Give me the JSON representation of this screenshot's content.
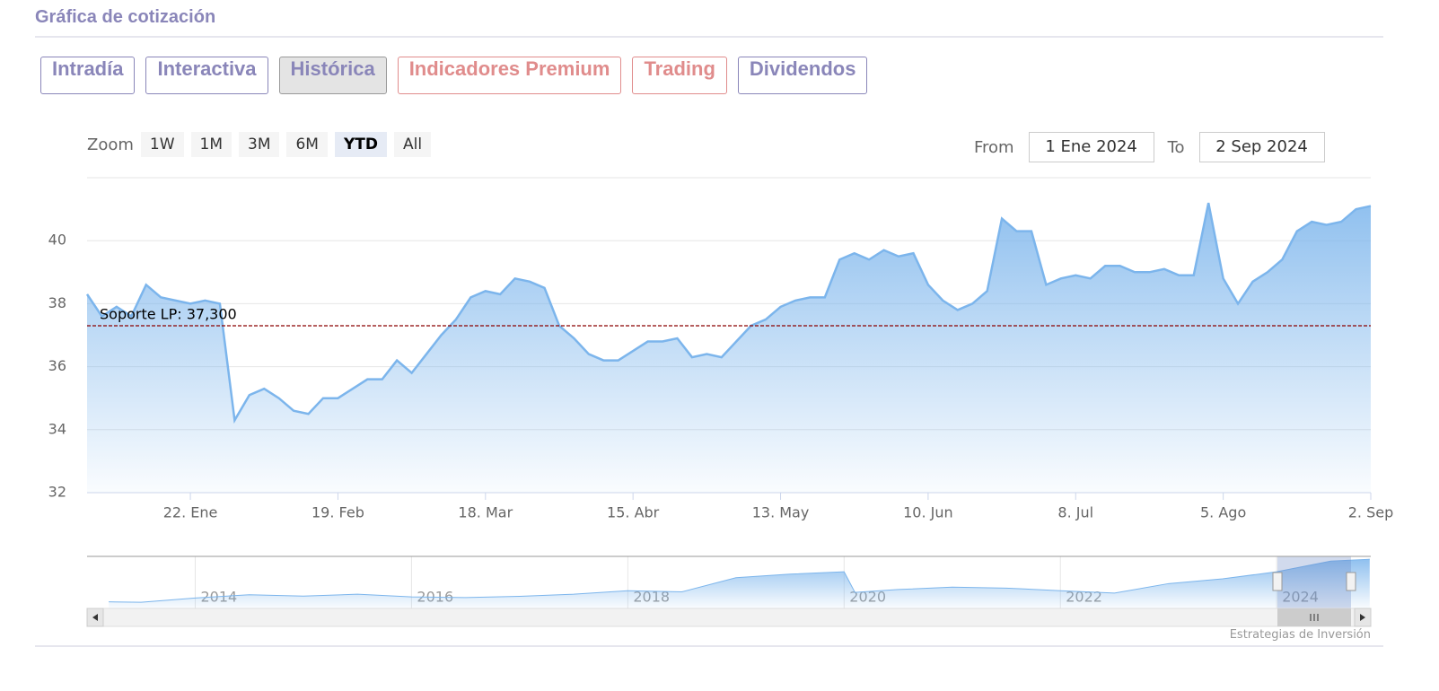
{
  "header": {
    "title": "Gráfica de cotización"
  },
  "tabs": {
    "items": [
      {
        "label": "Intradía",
        "color": "#8a86b9"
      },
      {
        "label": "Interactiva",
        "color": "#8a86b9"
      },
      {
        "label": "Histórica",
        "color": "#8a86b9"
      },
      {
        "label": "Indicadores Premium",
        "color": "#e08c8c"
      },
      {
        "label": "Trading",
        "color": "#e08c8c"
      },
      {
        "label": "Dividendos",
        "color": "#8a86b9"
      }
    ],
    "selected": 2
  },
  "zoom": {
    "label": "Zoom",
    "buttons": [
      "1W",
      "1M",
      "3M",
      "6M",
      "YTD",
      "All"
    ],
    "selected": 4
  },
  "range": {
    "from_label": "From",
    "from": "1 Ene 2024",
    "to_label": "To",
    "to": "2 Sep 2024"
  },
  "chart_data": [
    {
      "type": "area",
      "color": "#7cb5ec",
      "categories": [
        null,
        null,
        null,
        null,
        null,
        null,
        null,
        "22. Ene",
        null,
        null,
        null,
        null,
        null,
        null,
        null,
        null,
        null,
        "19. Feb",
        null,
        null,
        null,
        null,
        null,
        null,
        null,
        null,
        null,
        "18. Mar",
        null,
        null,
        null,
        null,
        null,
        null,
        null,
        null,
        null,
        "15. Abr",
        null,
        null,
        null,
        null,
        null,
        null,
        null,
        null,
        null,
        "13. May",
        null,
        null,
        null,
        null,
        null,
        null,
        null,
        null,
        null,
        "10. Jun",
        null,
        null,
        null,
        null,
        null,
        null,
        null,
        null,
        null,
        "8. Jul",
        null,
        null,
        null,
        null,
        null,
        null,
        null,
        null,
        null,
        "5. Ago",
        null,
        null,
        null,
        null,
        null,
        null,
        null,
        null,
        null,
        "2. Sep"
      ],
      "values": [
        38.3,
        37.6,
        37.9,
        37.6,
        38.6,
        38.2,
        38.1,
        38.0,
        38.1,
        38.0,
        34.3,
        35.1,
        35.3,
        35.0,
        34.6,
        34.5,
        35.0,
        35.0,
        35.3,
        35.6,
        35.6,
        36.2,
        35.8,
        36.4,
        37.0,
        37.5,
        38.2,
        38.4,
        38.3,
        38.8,
        38.7,
        38.5,
        37.3,
        36.9,
        36.4,
        36.2,
        36.2,
        36.5,
        36.8,
        36.8,
        36.9,
        36.3,
        36.4,
        36.3,
        36.8,
        37.3,
        37.5,
        37.9,
        38.1,
        38.2,
        38.2,
        39.4,
        39.6,
        39.4,
        39.7,
        39.5,
        39.6,
        38.6,
        38.1,
        37.8,
        38.0,
        38.4,
        40.7,
        40.3,
        40.3,
        38.6,
        38.8,
        38.9,
        38.8,
        39.2,
        39.2,
        39.0,
        39.0,
        39.1,
        38.9,
        38.9,
        41.2,
        38.8,
        38.0,
        38.7,
        39.0,
        39.4,
        40.3,
        40.6,
        40.5,
        40.6,
        41.0,
        41.1
      ],
      "ylim": [
        32,
        42
      ],
      "yticks": [
        32,
        34,
        36,
        38,
        40
      ],
      "grid": true,
      "plot_lines": [
        {
          "value": 37.3,
          "label": "Soporte LP: 37,300",
          "color": "#8b0000"
        }
      ]
    },
    {
      "type": "area",
      "color": "#7cb5ec",
      "x": [
        2013.2,
        2013.5,
        2014.0,
        2014.5,
        2015.0,
        2015.5,
        2016.0,
        2016.5,
        2017.0,
        2017.5,
        2018.0,
        2018.5,
        2019.0,
        2019.5,
        2020.0,
        2020.1,
        2020.5,
        2021.0,
        2021.5,
        2022.0,
        2022.5,
        2023.0,
        2023.5,
        2024.0,
        2024.5,
        2024.86
      ],
      "values": [
        22.8,
        22.6,
        24.4,
        25.8,
        25.2,
        26.0,
        24.9,
        24.6,
        25.1,
        26.0,
        27.5,
        27.0,
        33.0,
        34.5,
        35.5,
        26.8,
        28.0,
        29.0,
        28.6,
        27.5,
        26.5,
        30.5,
        32.5,
        35.5,
        40.0,
        40.8
      ],
      "xlim": [
        2013,
        2024.87
      ],
      "xticks": [
        2014,
        2016,
        2018,
        2020,
        2022,
        2024
      ],
      "ylim": [
        20,
        42
      ],
      "grid": true
    }
  ],
  "credit": "Estrategias de Inversión"
}
